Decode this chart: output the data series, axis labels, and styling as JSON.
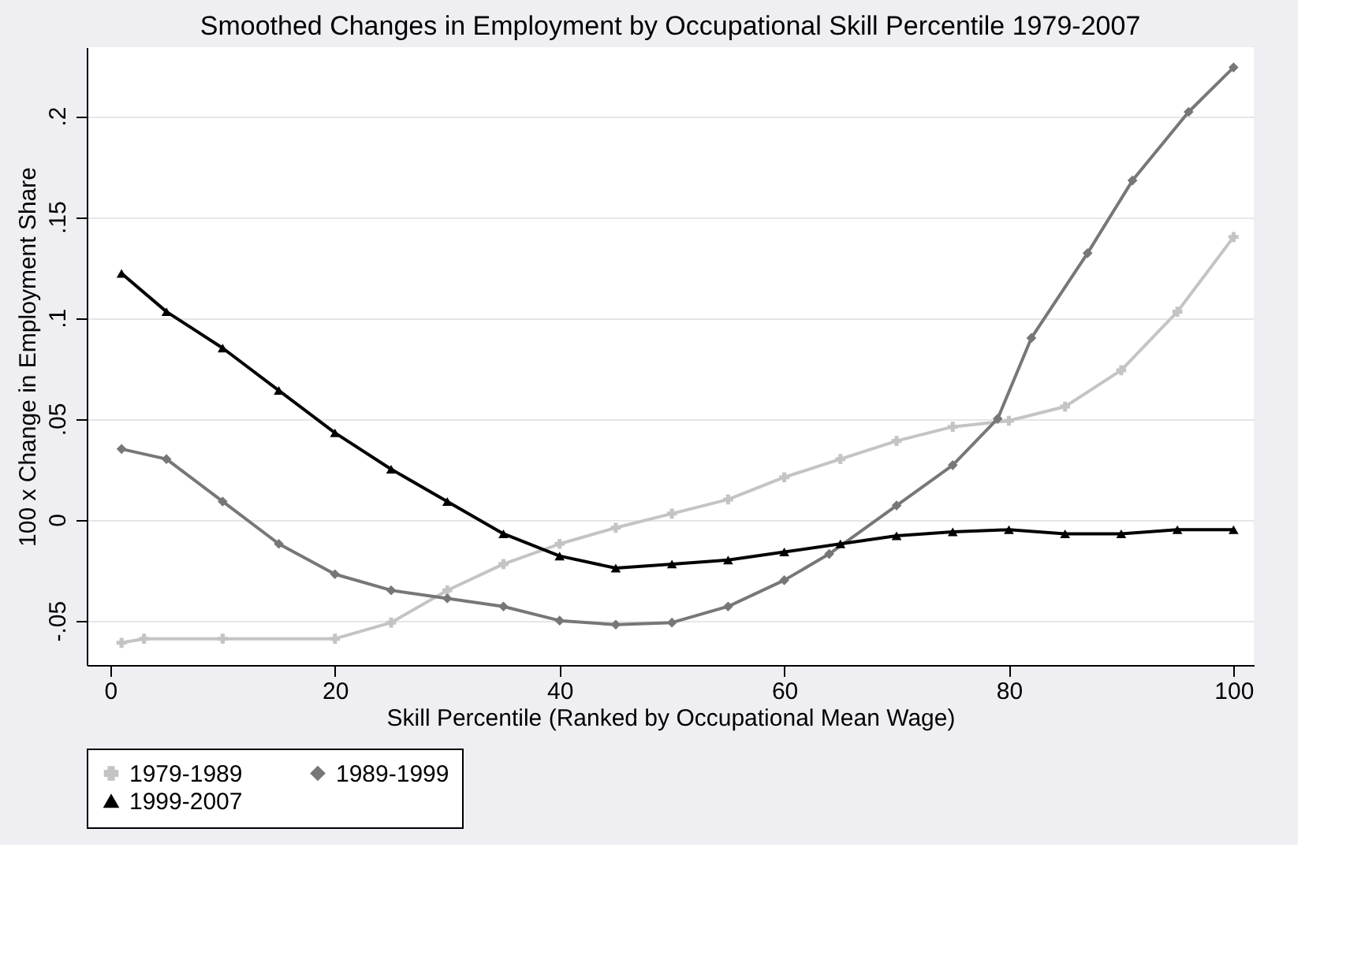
{
  "chart_data": {
    "type": "line",
    "title": "Smoothed Changes in Employment by Occupational Skill Percentile 1979-2007",
    "xlabel": "Skill Percentile (Ranked by Occupational Mean Wage)",
    "ylabel": "100 x Change in Employment Share",
    "xlim": [
      -2.1,
      101.8
    ],
    "ylim": [
      -0.072,
      0.234
    ],
    "xticks": [
      0,
      20,
      40,
      60,
      80,
      100
    ],
    "yticks": [
      {
        "value": -0.05,
        "label": "-.05"
      },
      0,
      {
        "value": 0.05,
        "label": ".05"
      },
      {
        "value": 0.1,
        "label": ".1"
      },
      {
        "value": 0.15,
        "label": ".15"
      },
      {
        "value": 0.2,
        "label": ".2"
      }
    ],
    "grid": "y",
    "legend": "bottom",
    "line_style": "solid",
    "series": [
      {
        "name": "1979-1989",
        "color": "#c4c4c4",
        "marker": "cross",
        "x": [
          1,
          3,
          10,
          20,
          25,
          30,
          35,
          40,
          45,
          50,
          55,
          60,
          65,
          70,
          75,
          80,
          85,
          90,
          95,
          100
        ],
        "values": [
          -0.061,
          -0.059,
          -0.059,
          -0.059,
          -0.051,
          -0.035,
          -0.022,
          -0.012,
          -0.004,
          0.003,
          0.01,
          0.021,
          0.03,
          0.039,
          0.046,
          0.049,
          0.056,
          0.074,
          0.103,
          0.14
        ]
      },
      {
        "name": "1989-1999",
        "color": "#777777",
        "marker": "diamond",
        "x": [
          1,
          5,
          10,
          15,
          20,
          25,
          30,
          35,
          40,
          45,
          50,
          55,
          60,
          64,
          70,
          75,
          79,
          82,
          87,
          91,
          96,
          100
        ],
        "values": [
          0.035,
          0.03,
          0.009,
          -0.012,
          -0.027,
          -0.035,
          -0.039,
          -0.043,
          -0.05,
          -0.052,
          -0.051,
          -0.043,
          -0.03,
          -0.017,
          0.007,
          0.027,
          0.05,
          0.09,
          0.132,
          0.168,
          0.202,
          0.224
        ]
      },
      {
        "name": "1999-2007",
        "color": "#000000",
        "marker": "triangle",
        "x": [
          1,
          5,
          10,
          15,
          20,
          25,
          30,
          35,
          40,
          45,
          50,
          55,
          60,
          65,
          70,
          75,
          80,
          85,
          90,
          95,
          100
        ],
        "values": [
          0.122,
          0.103,
          0.085,
          0.064,
          0.043,
          0.025,
          0.009,
          -0.007,
          -0.018,
          -0.024,
          -0.022,
          -0.02,
          -0.016,
          -0.012,
          -0.008,
          -0.006,
          -0.005,
          -0.007,
          -0.007,
          -0.005,
          -0.005
        ]
      }
    ]
  }
}
